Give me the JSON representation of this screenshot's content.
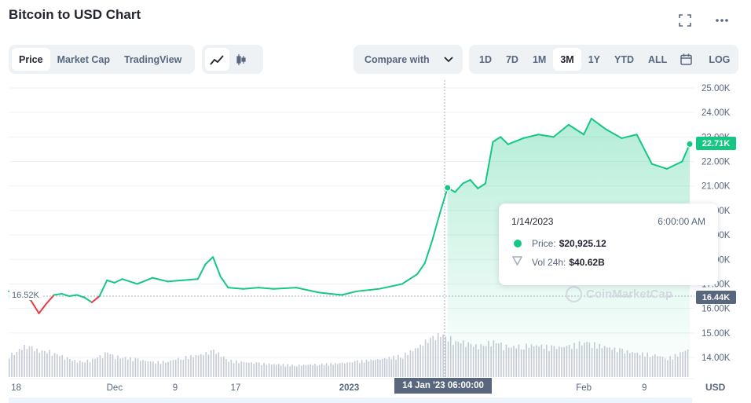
{
  "header": {
    "title": "Bitcoin to USD Chart"
  },
  "icons": {
    "fullscreen": "fullscreen-icon",
    "more": "more-dots-icon",
    "line": "line-chart-icon",
    "candle": "candlestick-icon",
    "calendar": "calendar-icon",
    "chevron": "chevron-down-icon"
  },
  "toolbar": {
    "tabs": [
      "Price",
      "Market Cap",
      "TradingView"
    ],
    "active_tab": "Price",
    "compare_label": "Compare with",
    "ranges": [
      "1D",
      "7D",
      "1M",
      "3M",
      "1Y",
      "YTD",
      "ALL"
    ],
    "active_range": "3M",
    "log_label": "LOG"
  },
  "tooltip": {
    "date": "1/14/2023",
    "time": "6:00:00 AM",
    "price_label": "Price:",
    "price_value": "$20,925.12",
    "vol_label": "Vol 24h:",
    "vol_value": "$40.62B"
  },
  "tags": {
    "current_price": "22.71K",
    "low_right": "16.44K",
    "low_left": "16.52K",
    "crosshair_x": "14 Jan '23  06:00:00"
  },
  "watermark": "CoinMarketCap",
  "colors": {
    "up": "#16c784",
    "down": "#ea3943",
    "axis_text": "#58667e",
    "grid": "#eff2f5"
  },
  "chart_data": {
    "type": "line",
    "title": "Bitcoin to USD Chart",
    "y_unit": "USD",
    "ylim": [
      14000,
      25000
    ],
    "y_ticks": [
      "25.00K",
      "24.00K",
      "23.00K",
      "22.00K",
      "21.00K",
      "20.00K",
      "19.00K",
      "18.00K",
      "17.00K",
      "16.00K",
      "15.00K",
      "14.00K"
    ],
    "x_ticks": [
      "18",
      "Dec",
      "9",
      "17",
      "2023",
      "14 Jan '23  06:00:00",
      "Feb",
      "9"
    ],
    "x_axis_label": "USD",
    "series": [
      {
        "x": [
          "2022-11-17",
          "2022-11-18",
          "2022-11-19",
          "2022-11-20",
          "2022-11-21",
          "2022-11-22",
          "2022-11-23",
          "2022-11-24",
          "2022-11-25",
          "2022-11-26",
          "2022-11-27",
          "2022-11-28",
          "2022-11-29",
          "2022-11-30",
          "2022-12-01",
          "2022-12-02",
          "2022-12-04",
          "2022-12-06",
          "2022-12-08",
          "2022-12-10",
          "2022-12-12",
          "2022-12-13",
          "2022-12-14",
          "2022-12-15",
          "2022-12-16",
          "2022-12-18",
          "2022-12-20",
          "2022-12-22",
          "2022-12-25",
          "2022-12-28",
          "2022-12-31",
          "2023-01-02",
          "2023-01-05",
          "2023-01-08",
          "2023-01-10",
          "2023-01-11",
          "2023-01-12",
          "2023-01-13",
          "2023-01-14",
          "2023-01-15",
          "2023-01-16",
          "2023-01-17",
          "2023-01-18",
          "2023-01-19",
          "2023-01-20",
          "2023-01-21",
          "2023-01-22",
          "2023-01-24",
          "2023-01-26",
          "2023-01-28",
          "2023-01-30",
          "2023-02-01",
          "2023-02-02",
          "2023-02-04",
          "2023-02-06",
          "2023-02-08",
          "2023-02-10",
          "2023-02-12",
          "2023-02-14",
          "2023-02-15"
        ],
        "y": [
          16700,
          16650,
          16550,
          16300,
          15800,
          16200,
          16550,
          16600,
          16500,
          16550,
          16450,
          16250,
          16500,
          17150,
          17050,
          17200,
          17000,
          17250,
          17100,
          17150,
          17200,
          17800,
          18100,
          17300,
          16850,
          16800,
          16850,
          16800,
          16850,
          16650,
          16550,
          16700,
          16800,
          17000,
          17400,
          17850,
          18800,
          19900,
          20925,
          20750,
          21100,
          21250,
          20900,
          21100,
          22800,
          23000,
          22700,
          22950,
          23100,
          23000,
          23500,
          23100,
          23750,
          23300,
          22950,
          23100,
          21900,
          21700,
          22000,
          22710
        ]
      }
    ],
    "volume_24h_billion": [
      22,
      26,
      31,
      30,
      26,
      27,
      24,
      21,
      18,
      16,
      16,
      18,
      21,
      25,
      21,
      20,
      18,
      15,
      16,
      20,
      22,
      24,
      27,
      22,
      17,
      15,
      14,
      13,
      12,
      13,
      14,
      16,
      18,
      22,
      30,
      36,
      40,
      43,
      40.62,
      36,
      35,
      33,
      31,
      34,
      36,
      33,
      30,
      32,
      32,
      30,
      31,
      36,
      34,
      30,
      27,
      24,
      23,
      19,
      25,
      30
    ]
  }
}
